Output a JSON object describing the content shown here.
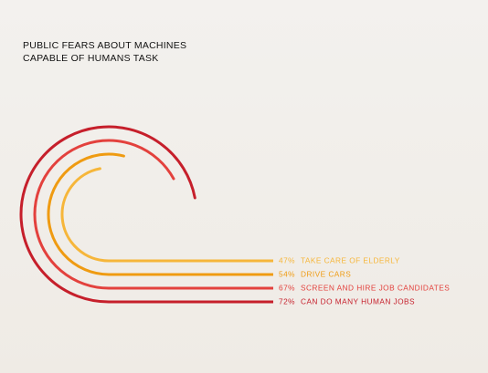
{
  "title": {
    "line1": "PUBLIC FEARS ABOUT MACHINES",
    "line2": "CAPABLE OF HUMANS TASK"
  },
  "chart_data": {
    "type": "radial_bar",
    "title": "PUBLIC FEARS ABOUT MACHINES CAPABLE OF HUMANS TASK",
    "unit": "%",
    "value_range": [
      0,
      100
    ],
    "series": [
      {
        "name": "TAKE CARE OF ELDERLY",
        "value": 47,
        "label": "47%",
        "color": "#f6b63a"
      },
      {
        "name": "DRIVE CARS",
        "value": 54,
        "label": "54%",
        "color": "#ef9b12"
      },
      {
        "name": "SCREEN AND HIRE JOB CANDIDATES",
        "value": 67,
        "label": "67%",
        "color": "#e3413d"
      },
      {
        "name": "CAN DO MANY HUMAN JOBS",
        "value": 72,
        "label": "72%",
        "color": "#c61f2b"
      }
    ]
  }
}
